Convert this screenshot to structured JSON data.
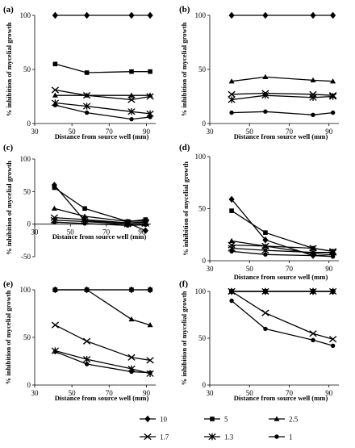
{
  "figure": {
    "legend": [
      {
        "series": "10",
        "marker": "diamond"
      },
      {
        "series": "5",
        "marker": "square"
      },
      {
        "series": "2.5",
        "marker": "triangle"
      },
      {
        "series": "1.7",
        "marker": "x"
      },
      {
        "series": "1.3",
        "marker": "star"
      },
      {
        "series": "1",
        "marker": "circle"
      }
    ],
    "legend_placement": "bottom",
    "marker_color": "#000000"
  },
  "chart_data": [
    {
      "type": "line",
      "panel_label": "(a)",
      "xlabel": "Distance from source well (mm)",
      "ylabel": "% inhibition of mycelial growth",
      "xlim": [
        30,
        95
      ],
      "ylim": [
        0,
        100
      ],
      "xticks": [
        30,
        50,
        70,
        90
      ],
      "yticks": [
        0,
        50,
        100
      ],
      "x": [
        41,
        58,
        82,
        92
      ],
      "series": [
        {
          "name": "10",
          "marker": "diamond",
          "values": [
            100,
            100,
            100,
            100
          ]
        },
        {
          "name": "5",
          "marker": "square",
          "values": [
            55,
            47,
            48,
            48
          ]
        },
        {
          "name": "2.5",
          "marker": "triangle",
          "values": [
            26,
            26,
            26,
            26
          ]
        },
        {
          "name": "1.7",
          "marker": "x",
          "values": [
            31,
            26,
            22,
            25
          ]
        },
        {
          "name": "1.3",
          "marker": "star",
          "values": [
            19,
            16,
            11,
            9
          ]
        },
        {
          "name": "1",
          "marker": "circle",
          "values": [
            17,
            10,
            4,
            6
          ]
        }
      ]
    },
    {
      "type": "line",
      "panel_label": "(b)",
      "xlabel": "Distance from source well (mm)",
      "ylabel": "% inhibition of mycelial growth",
      "xlim": [
        30,
        95
      ],
      "ylim": [
        0,
        100
      ],
      "xticks": [
        30,
        50,
        70,
        90
      ],
      "yticks": [
        0,
        50,
        100
      ],
      "x": [
        41,
        58,
        82,
        92
      ],
      "series": [
        {
          "name": "10",
          "marker": "diamond",
          "values": [
            100,
            100,
            100,
            100
          ]
        },
        {
          "name": "2.5",
          "marker": "triangle",
          "values": [
            39,
            43,
            40,
            39
          ]
        },
        {
          "name": "1.7",
          "marker": "x",
          "values": [
            27,
            28,
            27,
            26
          ]
        },
        {
          "name": "1.3",
          "marker": "star",
          "values": [
            22,
            26,
            24,
            25
          ]
        },
        {
          "name": "1",
          "marker": "circle",
          "values": [
            10,
            11,
            8,
            10
          ]
        }
      ]
    },
    {
      "type": "line",
      "panel_label": "(c)",
      "xlabel": "Distance from source well (mm)",
      "ylabel": "% inhibition of mycelial growth",
      "xlim": [
        30,
        95
      ],
      "ylim": [
        -50,
        100
      ],
      "xticks": [
        30,
        50,
        70,
        90
      ],
      "yticks": [
        -50,
        0,
        50,
        100
      ],
      "x": [
        41,
        58,
        82,
        92
      ],
      "series": [
        {
          "name": "10",
          "marker": "diamond",
          "values": [
            60,
            5,
            2,
            -10
          ]
        },
        {
          "name": "5",
          "marker": "square",
          "values": [
            56,
            24,
            4,
            7
          ]
        },
        {
          "name": "2.5",
          "marker": "triangle",
          "values": [
            24,
            12,
            4,
            5
          ]
        },
        {
          "name": "1.7",
          "marker": "x",
          "values": [
            10,
            7,
            2,
            3
          ]
        },
        {
          "name": "1.3",
          "marker": "star",
          "values": [
            6,
            4,
            0,
            1
          ]
        },
        {
          "name": "1",
          "marker": "circle",
          "values": [
            3,
            1,
            -2,
            -1
          ]
        }
      ]
    },
    {
      "type": "line",
      "panel_label": "(d)",
      "xlabel": "Distance from source well (mm)",
      "ylabel": "% inhibition of mycelial growth",
      "xlim": [
        30,
        95
      ],
      "ylim": [
        0,
        100
      ],
      "xticks": [
        30,
        50,
        70,
        90
      ],
      "yticks": [
        0,
        50,
        100
      ],
      "x": [
        41,
        58,
        82,
        92
      ],
      "series": [
        {
          "name": "10",
          "marker": "diamond",
          "values": [
            59,
            20,
            5,
            6
          ]
        },
        {
          "name": "5",
          "marker": "square",
          "values": [
            48,
            27,
            12,
            9
          ]
        },
        {
          "name": "2.5",
          "marker": "triangle",
          "values": [
            19,
            14,
            7,
            8
          ]
        },
        {
          "name": "1.7",
          "marker": "x",
          "values": [
            15,
            14,
            12,
            9
          ]
        },
        {
          "name": "1.3",
          "marker": "star",
          "values": [
            12,
            10,
            8,
            8
          ]
        },
        {
          "name": "1",
          "marker": "circle",
          "values": [
            9,
            6,
            5,
            4
          ]
        }
      ]
    },
    {
      "type": "line",
      "panel_label": "(e)",
      "xlabel": "Distance from source well (mm)",
      "ylabel": "% inhibition of mycelial growth",
      "xlim": [
        30,
        95
      ],
      "ylim": [
        0,
        100
      ],
      "xticks": [
        30,
        50,
        70,
        90
      ],
      "yticks": [
        0,
        50,
        100
      ],
      "x": [
        41,
        58,
        82,
        92
      ],
      "series": [
        {
          "name": "10",
          "marker": "diamond",
          "values": [
            100,
            100,
            100,
            100
          ]
        },
        {
          "name": "5",
          "marker": "square",
          "values": [
            100,
            100,
            100,
            100
          ]
        },
        {
          "name": "2.5",
          "marker": "triangle",
          "values": [
            100,
            100,
            69,
            63
          ]
        },
        {
          "name": "1.7",
          "marker": "x",
          "values": [
            63,
            46,
            29,
            26
          ]
        },
        {
          "name": "1.3",
          "marker": "star",
          "values": [
            36,
            27,
            17,
            12
          ]
        },
        {
          "name": "1",
          "marker": "circle",
          "values": [
            35,
            22,
            14,
            13
          ]
        }
      ]
    },
    {
      "type": "line",
      "panel_label": "(f)",
      "xlabel": "Distance from source well (mm)",
      "ylabel": "% inhibition of mycelial growth",
      "xlim": [
        30,
        95
      ],
      "ylim": [
        0,
        100
      ],
      "xticks": [
        30,
        50,
        70,
        90
      ],
      "yticks": [
        0,
        50,
        100
      ],
      "x": [
        41,
        58,
        82,
        92
      ],
      "series": [
        {
          "name": "10",
          "marker": "diamond",
          "values": [
            100,
            100,
            100,
            100
          ]
        },
        {
          "name": "5",
          "marker": "square",
          "values": [
            100,
            100,
            100,
            100
          ]
        },
        {
          "name": "2.5",
          "marker": "triangle",
          "values": [
            100,
            100,
            100,
            100
          ]
        },
        {
          "name": "1.3",
          "marker": "star",
          "values": [
            100,
            100,
            100,
            100
          ]
        },
        {
          "name": "1.7",
          "marker": "x",
          "values": [
            100,
            77,
            55,
            49
          ]
        },
        {
          "name": "1",
          "marker": "circle",
          "values": [
            90,
            60,
            48,
            42
          ]
        }
      ]
    }
  ]
}
